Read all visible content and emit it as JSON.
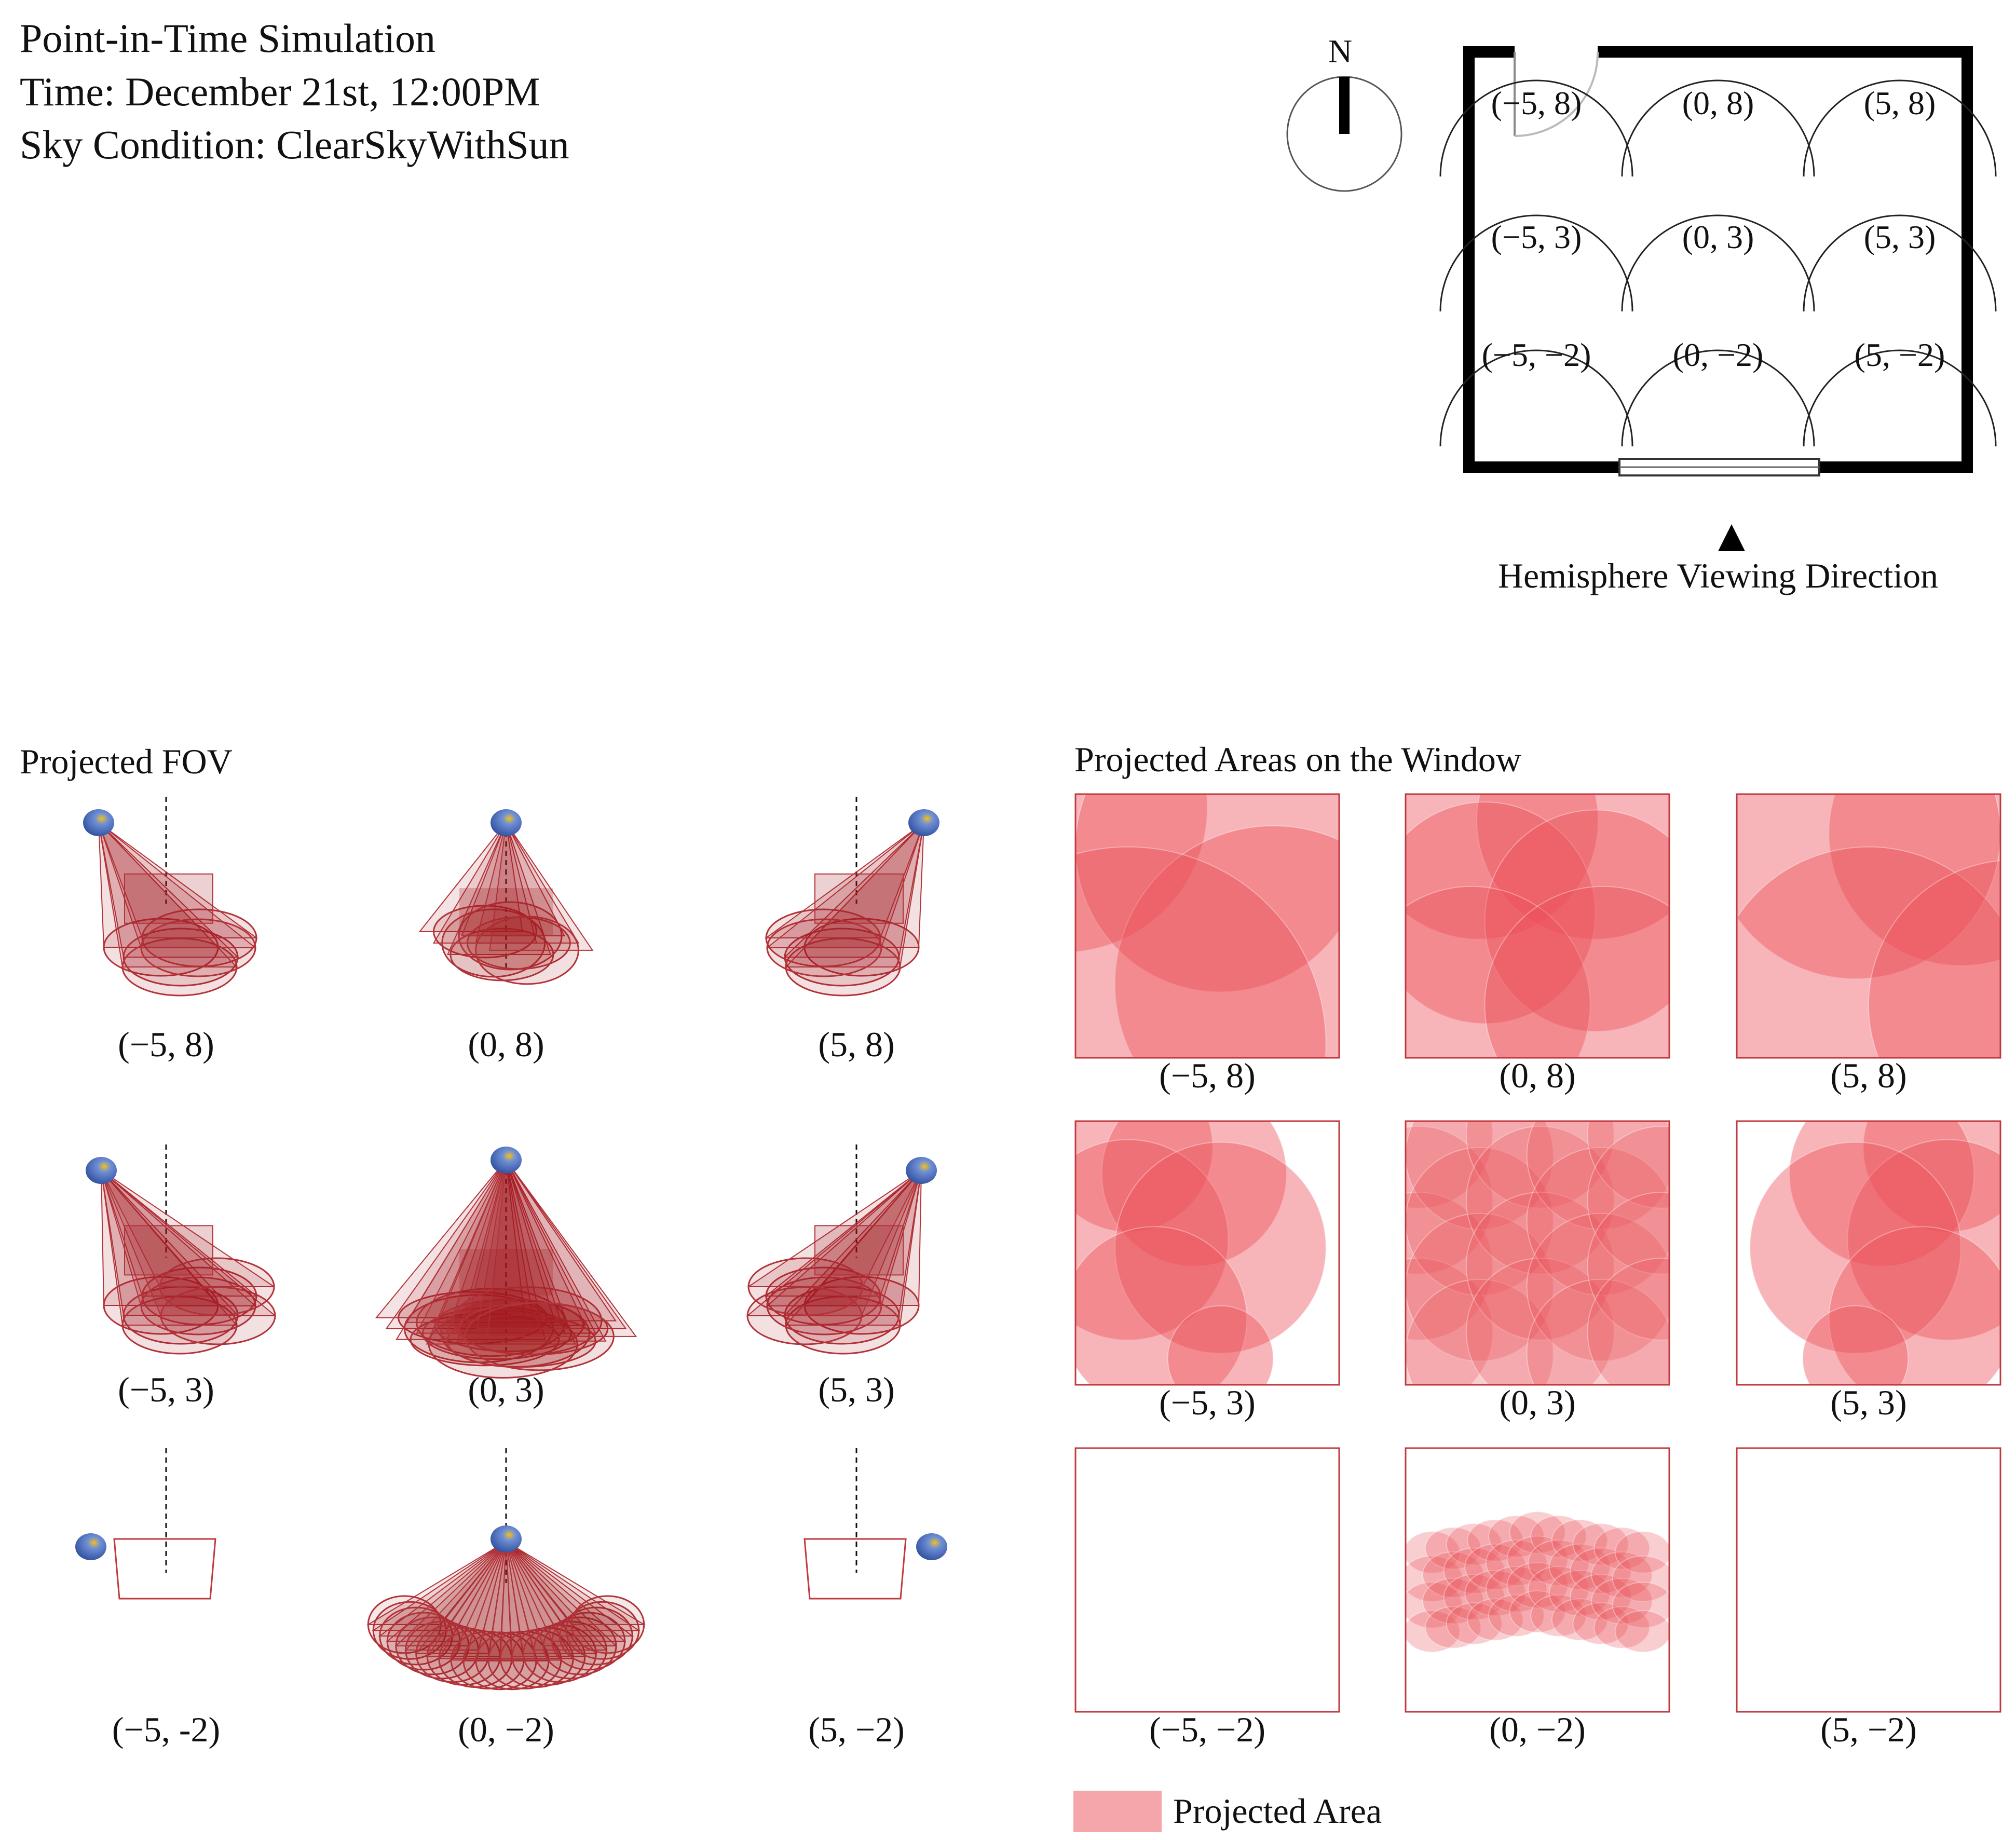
{
  "header": {
    "title": "Point-in-Time Simulation",
    "time": "Time: December 21st, 12:00PM",
    "sky": "Sky Condition: ClearSkyWithSun"
  },
  "compass": {
    "north_label": "N"
  },
  "floorplan": {
    "points": [
      "(−5, 8)",
      "(0, 8)",
      "(5, 8)",
      "(−5, 3)",
      "(0, 3)",
      "(5, 3)",
      "(−5, −2)",
      "(0, −2)",
      "(5, −2)"
    ],
    "direction_label": "Hemisphere Viewing Direction"
  },
  "fov": {
    "title": "Projected FOV",
    "labels": [
      "(−5, 8)",
      "(0, 8)",
      "(5, 8)",
      "(−5, 3)",
      "(0, 3)",
      "(5, 3)",
      "(−5, -2)",
      "(0, −2)",
      "(5, −2)"
    ]
  },
  "window": {
    "title": "Projected Areas on the Window",
    "labels": [
      "(−5, 8)",
      "(0, 8)",
      "(5, 8)",
      "(−5, 3)",
      "(0, 3)",
      "(5, 3)",
      "(−5, −2)",
      "(0, −2)",
      "(5, −2)"
    ]
  },
  "legend": {
    "label": "Projected Area"
  },
  "colors": {
    "projected_fill": "#eb4f57",
    "cone_fill": "#a11a1f",
    "legend_swatch": "#f4a6aa",
    "sensor_blue": "#3f62b0",
    "sensor_yellow": "#f1c21b"
  }
}
